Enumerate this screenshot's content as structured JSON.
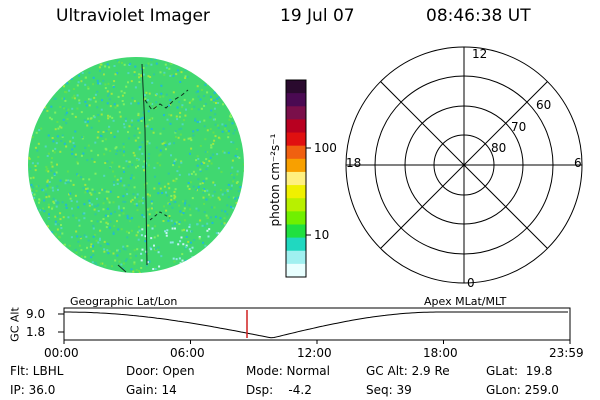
{
  "header": {
    "instrument": "Ultraviolet Imager",
    "date": "19 Jul 07",
    "time": "08:46:38 UT"
  },
  "colorbar": {
    "unit_label": "photon cm⁻²s⁻¹",
    "ticks": [
      "100",
      "10"
    ],
    "colors": [
      "#2a0a2e",
      "#4a0a52",
      "#7a0f4a",
      "#b80020",
      "#e01010",
      "#f06010",
      "#f8a000",
      "#fff080",
      "#f0f000",
      "#b8f000",
      "#70f000",
      "#20e040",
      "#20d8c0",
      "#a0f0f0",
      "#e8ffff"
    ]
  },
  "polar_plot": {
    "mlt_labels": {
      "top": "12",
      "left": "18",
      "right": "6",
      "bottom": "0"
    },
    "lat_labels": [
      "60",
      "70",
      "80"
    ]
  },
  "orbit_plot": {
    "left_label": "Geographic Lat/Lon",
    "right_label": "Apex MLat/MLT",
    "y_axis_label": "GC Alt",
    "y_ticks": [
      "9.0",
      "1.8"
    ],
    "x_ticks": [
      "00:00",
      "06:00",
      "12:00",
      "18:00",
      "23:59"
    ],
    "current_marker_color": "#d02020"
  },
  "status": {
    "flt": "Flt: LBHL",
    "ip": "IP: 36.0",
    "door": "Door: Open",
    "gain": "Gain: 14",
    "mode": "Mode: Normal",
    "dsp": "Dsp:    -4.2",
    "gc_alt": "GC Alt: 2.9 Re",
    "seq": "Seq: 39",
    "glat": "GLat:  19.8",
    "glon": "GLon: 259.0"
  }
}
